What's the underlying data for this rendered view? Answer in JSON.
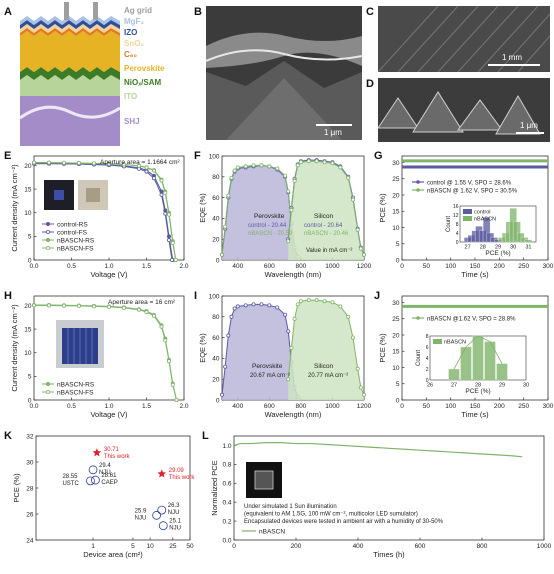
{
  "figure": {
    "panel_labels": {
      "A": "A",
      "B": "B",
      "C": "C",
      "D": "D",
      "E": "E",
      "F": "F",
      "G": "G",
      "H": "H",
      "I": "I",
      "J": "J",
      "K": "K",
      "L": "L"
    }
  },
  "stack": {
    "layers": [
      {
        "label": "Ag grid",
        "color": "#9e9e9e"
      },
      {
        "label": "MgF₂",
        "color": "#a8c3e6"
      },
      {
        "label": "IZO",
        "color": "#2f4f9b"
      },
      {
        "label": "SnO₂",
        "color": "#f4d29b"
      },
      {
        "label": "C₆₀",
        "color": "#e07a1f"
      },
      {
        "label": "Perovskite",
        "color": "#e6b325"
      },
      {
        "label": "NiOₓ/SAM",
        "color": "#3e7b27"
      },
      {
        "label": "ITO",
        "color": "#b7d59a"
      },
      {
        "label": "SHJ",
        "color": "#a48cc9"
      }
    ]
  },
  "sem": {
    "B_scale": "1 μm",
    "C_scale": "1 mm",
    "D_scale": "1 μm"
  },
  "colors": {
    "control": "#5a5aa0",
    "nbascn": "#7fb46a",
    "star": "#e0202a",
    "circle": "#2a3d8f"
  },
  "chart_data": [
    {
      "panel": "E",
      "type": "line",
      "annotation": "Aperture area = 1.1664 cm²",
      "xlabel": "Voltage (V)",
      "ylabel": "Current density (mA cm⁻²)",
      "xlim": [
        0,
        2.0
      ],
      "ylim": [
        0,
        22
      ],
      "xticks": [
        "0.0",
        "0.5",
        "1.0",
        "1.5",
        "2.0"
      ],
      "yticks": [
        "0",
        "5",
        "10",
        "15",
        "20"
      ],
      "legend": [
        "control-RS",
        "control-FS",
        "nBASCN-RS",
        "nBASCN-FS"
      ],
      "series": [
        {
          "name": "control-RS",
          "x": [
            0,
            0.2,
            0.4,
            0.6,
            0.8,
            1.0,
            1.2,
            1.4,
            1.5,
            1.6,
            1.7,
            1.75,
            1.8,
            1.85
          ],
          "y": [
            20.4,
            20.4,
            20.35,
            20.3,
            20.2,
            20.1,
            19.9,
            19.5,
            19.0,
            17.8,
            14.5,
            10.5,
            5.0,
            0
          ]
        },
        {
          "name": "control-FS",
          "x": [
            0,
            0.2,
            0.4,
            0.6,
            0.8,
            1.0,
            1.2,
            1.4,
            1.5,
            1.6,
            1.7,
            1.75,
            1.8,
            1.84
          ],
          "y": [
            20.4,
            20.4,
            20.35,
            20.3,
            20.2,
            20.1,
            19.8,
            19.3,
            18.7,
            17.3,
            13.8,
            9.8,
            4.2,
            0
          ]
        },
        {
          "name": "nBASCN-RS",
          "x": [
            0,
            0.2,
            0.4,
            0.6,
            0.8,
            1.0,
            1.2,
            1.4,
            1.5,
            1.6,
            1.7,
            1.75,
            1.8,
            1.85,
            1.89
          ],
          "y": [
            20.6,
            20.6,
            20.55,
            20.5,
            20.45,
            20.35,
            20.2,
            19.9,
            19.6,
            19.0,
            17.0,
            14.5,
            10.0,
            4.0,
            0
          ]
        },
        {
          "name": "nBASCN-FS",
          "x": [
            0,
            0.2,
            0.4,
            0.6,
            0.8,
            1.0,
            1.2,
            1.4,
            1.5,
            1.6,
            1.7,
            1.75,
            1.8,
            1.85,
            1.89
          ],
          "y": [
            20.6,
            20.6,
            20.55,
            20.5,
            20.45,
            20.35,
            20.2,
            19.9,
            19.55,
            18.9,
            16.8,
            14.2,
            9.6,
            3.6,
            0
          ]
        }
      ]
    },
    {
      "panel": "F",
      "type": "area",
      "xlabel": "Wavelength (nm)",
      "ylabel": "EQE (%)",
      "xlim": [
        300,
        1200
      ],
      "ylim": [
        0,
        100
      ],
      "xticks": [
        "400",
        "600",
        "800",
        "1000",
        "1200"
      ],
      "yticks": [
        "0",
        "20",
        "40",
        "60",
        "80",
        "100"
      ],
      "labels": {
        "perovskite": "Perovskite",
        "silicon": "Silicon",
        "control_pvk": "control - 20.44",
        "nbascn_pvk": "nBASCN - 20.59",
        "control_si": "control - 20.64",
        "nbascn_si": "nBASCN - 20.46",
        "unit_note": "Value in mA cm⁻²"
      },
      "series": [
        {
          "name": "control",
          "x": [
            300,
            320,
            340,
            360,
            380,
            400,
            450,
            500,
            550,
            600,
            650,
            700,
            720,
            740,
            760,
            780
          ],
          "y": [
            5,
            30,
            60,
            78,
            85,
            88,
            89,
            90,
            91,
            90,
            87,
            80,
            65,
            35,
            12,
            3
          ]
        },
        {
          "name": "nBASCN",
          "x": [
            300,
            320,
            340,
            360,
            380,
            400,
            450,
            500,
            550,
            600,
            650,
            700,
            720,
            740,
            760,
            780
          ],
          "y": [
            5,
            32,
            62,
            79,
            86,
            89,
            90,
            91,
            91,
            90,
            88,
            81,
            66,
            36,
            12,
            3
          ]
        },
        {
          "name": "control",
          "x": [
            720,
            740,
            760,
            780,
            800,
            850,
            900,
            950,
            1000,
            1050,
            1100,
            1130,
            1160,
            1180,
            1200
          ],
          "y": [
            20,
            50,
            78,
            92,
            95,
            96,
            96,
            95,
            94,
            90,
            80,
            60,
            30,
            12,
            5
          ]
        },
        {
          "name": "nBASCN",
          "x": [
            720,
            740,
            760,
            780,
            800,
            850,
            900,
            950,
            1000,
            1050,
            1100,
            1130,
            1160,
            1180,
            1200
          ],
          "y": [
            18,
            48,
            76,
            91,
            94,
            95,
            95,
            94,
            93,
            89,
            79,
            58,
            29,
            11,
            5
          ]
        }
      ]
    },
    {
      "panel": "G",
      "type": "line",
      "xlabel": "Time (s)",
      "ylabel": "PCE (%)",
      "xlim": [
        0,
        300
      ],
      "ylim": [
        0,
        32
      ],
      "xticks": [
        "0",
        "50",
        "100",
        "150",
        "200",
        "250",
        "300"
      ],
      "yticks": [
        "0",
        "5",
        "10",
        "15",
        "20",
        "25",
        "30"
      ],
      "series": [
        {
          "name": "control @ 1.55 V, SPO = 28.6%",
          "x": [
            0,
            300
          ],
          "y": [
            28.6,
            28.6
          ]
        },
        {
          "name": "nBASCN @ 1.62 V, SPO = 30.5%",
          "x": [
            0,
            300
          ],
          "y": [
            30.5,
            30.5
          ]
        }
      ],
      "inset": {
        "type": "bar",
        "xlabel": "PCE (%)",
        "ylabel": "Count",
        "xticks": [
          "27",
          "28",
          "29",
          "30",
          "31"
        ],
        "yticks": [
          "0",
          "4",
          "8",
          "12",
          "16"
        ],
        "legend": [
          "control",
          "nBASCN"
        ],
        "series": [
          {
            "name": "control",
            "x": [
              27.0,
              27.25,
              27.5,
              27.75,
              28.0,
              28.25,
              28.5,
              28.75,
              29.0
            ],
            "values": [
              2,
              3,
              5,
              7,
              5,
              11,
              4,
              2,
              1
            ]
          },
          {
            "name": "nBASCN",
            "x": [
              29.25,
              29.5,
              29.75,
              30.0,
              30.25,
              30.5,
              30.75,
              31.0
            ],
            "values": [
              2,
              4,
              9,
              15,
              9,
              4,
              2,
              1
            ]
          }
        ]
      }
    },
    {
      "panel": "H",
      "type": "line",
      "annotation": "Aperture area = 16 cm²",
      "xlabel": "Voltage (V)",
      "ylabel": "Current density (mA cm⁻²)",
      "xlim": [
        0,
        2.0
      ],
      "ylim": [
        0,
        22
      ],
      "xticks": [
        "0.0",
        "0.5",
        "1.0",
        "1.5",
        "2.0"
      ],
      "yticks": [
        "0",
        "5",
        "10",
        "15",
        "20"
      ],
      "legend": [
        "nBASCN-RS",
        "nBASCN-FS"
      ],
      "series": [
        {
          "name": "nBASCN-RS",
          "x": [
            0,
            0.2,
            0.4,
            0.6,
            0.8,
            1.0,
            1.2,
            1.4,
            1.5,
            1.6,
            1.7,
            1.75,
            1.8,
            1.85,
            1.9
          ],
          "y": [
            20.1,
            20.1,
            20.05,
            20.0,
            19.9,
            19.8,
            19.6,
            19.2,
            18.8,
            18.0,
            15.8,
            13.0,
            8.5,
            3.5,
            0
          ]
        },
        {
          "name": "nBASCN-FS",
          "x": [
            0,
            0.2,
            0.4,
            0.6,
            0.8,
            1.0,
            1.2,
            1.4,
            1.5,
            1.6,
            1.7,
            1.75,
            1.8,
            1.85,
            1.9
          ],
          "y": [
            20.0,
            20.0,
            19.95,
            19.9,
            19.8,
            19.7,
            19.5,
            19.1,
            18.6,
            17.8,
            15.5,
            12.6,
            8.2,
            3.2,
            0
          ]
        }
      ]
    },
    {
      "panel": "I",
      "type": "area",
      "xlabel": "Wavelength (nm)",
      "ylabel": "EQE (%)",
      "xlim": [
        300,
        1200
      ],
      "ylim": [
        0,
        100
      ],
      "xticks": [
        "400",
        "600",
        "800",
        "1000",
        "1200"
      ],
      "yticks": [
        "0",
        "20",
        "40",
        "60",
        "80",
        "100"
      ],
      "labels": {
        "perovskite": "Perovskite",
        "perovskite_value": "20.67 mA cm⁻²",
        "silicon": "Silicon",
        "silicon_value": "20.77 mA cm⁻²"
      },
      "series": [
        {
          "name": "nBASCN",
          "x": [
            300,
            320,
            340,
            360,
            380,
            400,
            450,
            500,
            550,
            600,
            650,
            700,
            720,
            740,
            760,
            780
          ],
          "y": [
            5,
            32,
            62,
            80,
            88,
            90,
            91,
            92,
            92,
            91,
            89,
            82,
            66,
            36,
            12,
            3
          ]
        },
        {
          "name": "nBASCN",
          "x": [
            720,
            740,
            760,
            780,
            800,
            850,
            900,
            950,
            1000,
            1050,
            1100,
            1130,
            1160,
            1180,
            1200
          ],
          "y": [
            20,
            50,
            78,
            92,
            95,
            96,
            96,
            95,
            94,
            90,
            80,
            60,
            30,
            12,
            5
          ]
        }
      ]
    },
    {
      "panel": "J",
      "type": "line",
      "xlabel": "Time (s)",
      "ylabel": "PCE (%)",
      "xlim": [
        0,
        300
      ],
      "ylim": [
        0,
        32
      ],
      "xticks": [
        "0",
        "50",
        "100",
        "150",
        "200",
        "250",
        "300"
      ],
      "yticks": [
        "0",
        "5",
        "10",
        "15",
        "20",
        "25",
        "30"
      ],
      "series": [
        {
          "name": "nBASCN @1.62 V, SPO = 28.8%",
          "x": [
            0,
            300
          ],
          "y": [
            28.8,
            28.8
          ]
        }
      ],
      "inset": {
        "type": "bar",
        "xlabel": "PCE (%)",
        "ylabel": "Count",
        "xticks": [
          "26",
          "27",
          "28",
          "29",
          "30"
        ],
        "yticks": [
          "0",
          "2",
          "4",
          "6",
          "8"
        ],
        "legend": [
          "nBASCN"
        ],
        "series": [
          {
            "name": "nBASCN",
            "x": [
              27.0,
              27.5,
              28.0,
              28.5,
              29.0
            ],
            "values": [
              2,
              6,
              8,
              7,
              3
            ]
          }
        ]
      }
    },
    {
      "panel": "K",
      "type": "scatter",
      "xlabel": "Device area (cm²)",
      "ylabel": "PCE (%)",
      "xlim": [
        0.1,
        50
      ],
      "ylim": [
        24,
        32
      ],
      "xscale": "log",
      "xticks": [
        "1",
        "5",
        "10",
        "25",
        "50"
      ],
      "yticks": [
        "24",
        "26",
        "28",
        "30",
        "32"
      ],
      "points": [
        {
          "x": 1.1664,
          "y": 30.71,
          "label": "30.71\nThis work",
          "marker": "star"
        },
        {
          "x": 16,
          "y": 29.09,
          "label": "29.09\nThis work",
          "marker": "star"
        },
        {
          "x": 1.0,
          "y": 29.4,
          "label": "29.4\nNJU",
          "marker": "circle"
        },
        {
          "x": 1.1,
          "y": 28.61,
          "label": "28.61\nCAEP",
          "marker": "circle"
        },
        {
          "x": 0.9,
          "y": 28.55,
          "label": "28.55\nUSTC",
          "marker": "circle"
        },
        {
          "x": 16,
          "y": 26.3,
          "label": "26.3\nNJU",
          "marker": "circle"
        },
        {
          "x": 13,
          "y": 25.9,
          "label": "25.9\nNJU",
          "marker": "circle"
        },
        {
          "x": 17,
          "y": 25.1,
          "label": "25.1\nNJU",
          "marker": "circle"
        }
      ]
    },
    {
      "panel": "L",
      "type": "line",
      "xlabel": "Times (h)",
      "ylabel": "Normalized PCE",
      "xlim": [
        0,
        1000
      ],
      "ylim": [
        0,
        1.1
      ],
      "xticks": [
        "0",
        "200",
        "400",
        "600",
        "800",
        "1000"
      ],
      "yticks": [
        "0.0",
        "0.2",
        "0.4",
        "0.6",
        "0.8",
        "1.0"
      ],
      "legend": [
        "nBASCN"
      ],
      "notes": [
        "Under simulated 1 Sun illumination",
        "(equivalent to AM 1.5G, 100 mW cm⁻², multicolor LED sumulator)",
        "Encapsulated devices were tested in ambient air with a humidity of 30-50%"
      ],
      "series": [
        {
          "name": "nBASCN",
          "x": [
            0,
            20,
            60,
            100,
            150,
            200,
            250,
            300,
            350,
            400,
            450,
            500,
            550,
            600,
            650,
            700,
            750,
            800,
            850,
            900,
            930
          ],
          "y": [
            1.0,
            1.02,
            1.02,
            1.03,
            1.03,
            1.02,
            1.02,
            1.01,
            1.0,
            0.99,
            0.98,
            0.97,
            0.96,
            0.95,
            0.94,
            0.93,
            0.92,
            0.91,
            0.9,
            0.89,
            0.88
          ]
        }
      ]
    }
  ]
}
